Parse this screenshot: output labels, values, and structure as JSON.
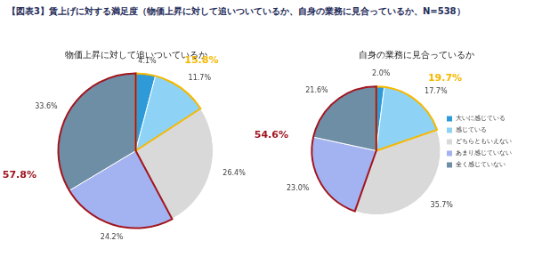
{
  "title": "【図表3】賃上げに対する満足度（物価上昇に対して追いついているか、自身の業務に見合っているか、N=538）",
  "chart_data": [
    {
      "type": "pie",
      "title": "物価上昇に対して追いついているか",
      "categories": [
        "大いに感じている",
        "感じている",
        "どちらともいえない",
        "あまり感じていない",
        "全く感じていない"
      ],
      "values": [
        4.1,
        11.7,
        26.4,
        24.2,
        33.6
      ],
      "value_labels": [
        "4.1%",
        "11.7%",
        "26.4%",
        "24.2%",
        "33.6%"
      ],
      "colors": [
        "#2e9ad8",
        "#8ed3f5",
        "#d9d9d9",
        "#a3b2f0",
        "#6e8ea6"
      ],
      "data_labels": true,
      "groups": [
        {
          "members": [
            "大いに感じている",
            "感じている"
          ],
          "value": 15.8,
          "label": "15.8%",
          "color": "#f5b800"
        },
        {
          "members": [
            "あまり感じていない",
            "全く感じていない"
          ],
          "value": 57.8,
          "label": "57.8%",
          "color": "#a0141e"
        }
      ]
    },
    {
      "type": "pie",
      "title": "自身の業務に見合っているか",
      "categories": [
        "大いに感じている",
        "感じている",
        "どちらともいえない",
        "あまり感じていない",
        "全く感じていない"
      ],
      "values": [
        2.0,
        17.7,
        35.7,
        23.0,
        21.6
      ],
      "value_labels": [
        "2.0%",
        "17.7%",
        "35.7%",
        "23.0%",
        "21.6%"
      ],
      "colors": [
        "#2e9ad8",
        "#8ed3f5",
        "#d9d9d9",
        "#a3b2f0",
        "#6e8ea6"
      ],
      "data_labels": true,
      "legend": "right",
      "groups": [
        {
          "members": [
            "大いに感じている",
            "感じている"
          ],
          "value": 19.7,
          "label": "19.7%",
          "color": "#f5b800"
        },
        {
          "members": [
            "あまり感じていない",
            "全く感じていない"
          ],
          "value": 54.6,
          "label": "54.6%",
          "color": "#a0141e"
        }
      ]
    }
  ]
}
